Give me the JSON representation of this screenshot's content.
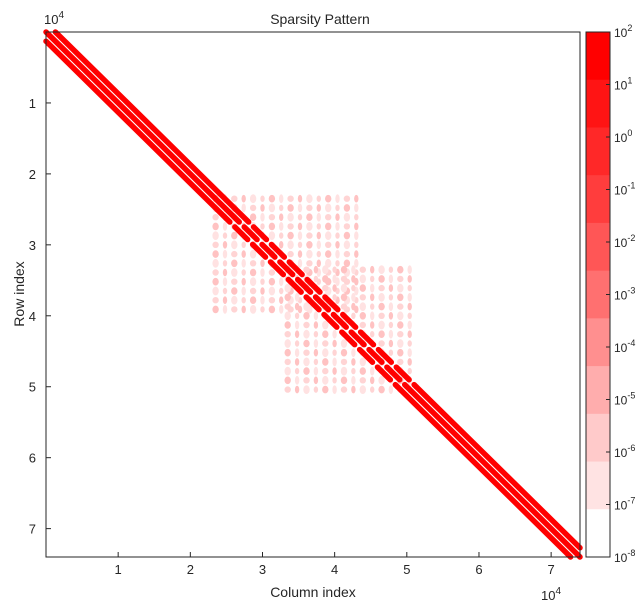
{
  "chart_data": {
    "type": "heatmap",
    "title": "Sparsity Pattern",
    "xlabel": "Column index",
    "ylabel": "Row index",
    "x_exponent_base": "10",
    "x_exponent_power": "4",
    "y_exponent_base": "10",
    "y_exponent_power": "4",
    "xlim": [
      0,
      7.4
    ],
    "ylim": [
      0,
      7.4
    ],
    "y_axis_direction": "reversed",
    "x_ticks": [
      {
        "value": 1,
        "label": "1"
      },
      {
        "value": 2,
        "label": "2"
      },
      {
        "value": 3,
        "label": "3"
      },
      {
        "value": 4,
        "label": "4"
      },
      {
        "value": 5,
        "label": "5"
      },
      {
        "value": 6,
        "label": "6"
      },
      {
        "value": 7,
        "label": "7"
      }
    ],
    "y_ticks": [
      {
        "value": 1,
        "label": "1"
      },
      {
        "value": 2,
        "label": "2"
      },
      {
        "value": 3,
        "label": "3"
      },
      {
        "value": 4,
        "label": "4"
      },
      {
        "value": 5,
        "label": "5"
      },
      {
        "value": 6,
        "label": "6"
      },
      {
        "value": 7,
        "label": "7"
      }
    ],
    "diagonal_bands": [
      {
        "offset": 0.13,
        "start": 0,
        "end": 7.4,
        "magnitude_exponent": 2
      },
      {
        "offset": 0,
        "start": 0,
        "end": 7.4,
        "magnitude_exponent": 2
      },
      {
        "offset": -0.13,
        "start": 0,
        "end": 7.4,
        "magnitude_exponent": 2
      }
    ],
    "dashed_segment": {
      "start": 2.5,
      "end": 5.0
    },
    "scattered_blocks": [
      {
        "x_range": [
          2.35,
          4.35
        ],
        "y_range": [
          2.35,
          4.0
        ],
        "spacing": 0.13,
        "magnitude_exponent": -6
      },
      {
        "x_range": [
          3.35,
          5.05
        ],
        "y_range": [
          3.35,
          5.05
        ],
        "spacing": 0.13,
        "magnitude_exponent": -6
      }
    ],
    "colorbar": {
      "scale": "log",
      "levels": [
        {
          "exp": "2",
          "color": "#ff0000"
        },
        {
          "exp": "1",
          "color": "#ff1414"
        },
        {
          "exp": "0",
          "color": "#ff2828"
        },
        {
          "exp": "-1",
          "color": "#ff3d3d"
        },
        {
          "exp": "-2",
          "color": "#ff5656"
        },
        {
          "exp": "-3",
          "color": "#ff7070"
        },
        {
          "exp": "-4",
          "color": "#ff8f8f"
        },
        {
          "exp": "-5",
          "color": "#ffadad"
        },
        {
          "exp": "-6",
          "color": "#ffcaca"
        },
        {
          "exp": "-7",
          "color": "#ffe3e3"
        },
        {
          "exp": "-8",
          "color": "#ffffff"
        }
      ],
      "tick_base": "10"
    }
  }
}
